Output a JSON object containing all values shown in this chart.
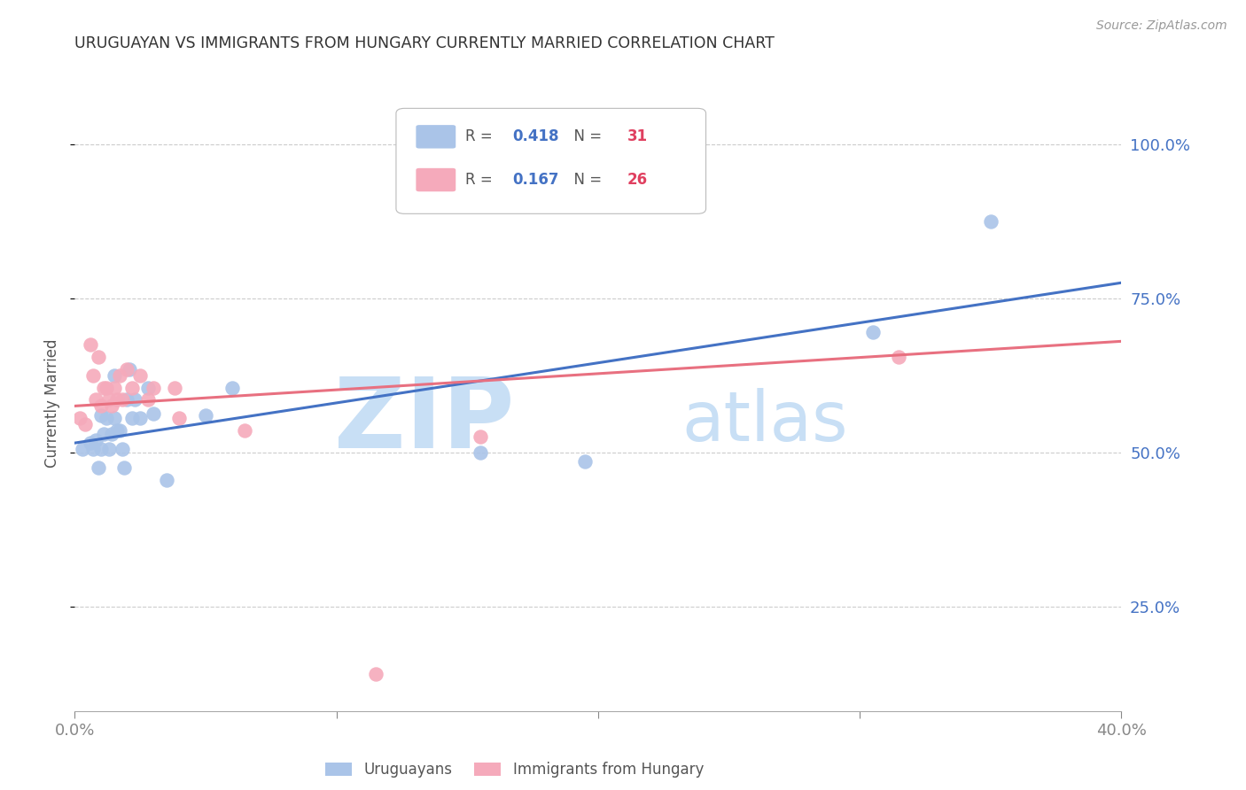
{
  "title": "URUGUAYAN VS IMMIGRANTS FROM HUNGARY CURRENTLY MARRIED CORRELATION CHART",
  "source": "Source: ZipAtlas.com",
  "ylabel": "Currently Married",
  "ytick_labels": [
    "100.0%",
    "75.0%",
    "50.0%",
    "25.0%"
  ],
  "ytick_values": [
    1.0,
    0.75,
    0.5,
    0.25
  ],
  "xmin": 0.0,
  "xmax": 0.4,
  "ymin": 0.08,
  "ymax": 1.08,
  "blue_R": "0.418",
  "blue_N": "31",
  "pink_R": "0.167",
  "pink_N": "26",
  "blue_color": "#aac4e8",
  "pink_color": "#f5aabb",
  "blue_line_color": "#4472c4",
  "pink_line_color": "#e87080",
  "legend_R_color": "#4472c4",
  "legend_N_color": "#e04060",
  "watermark_zip": "ZIP",
  "watermark_atlas": "atlas",
  "watermark_color": "#c8dff5",
  "blue_x": [
    0.003,
    0.006,
    0.007,
    0.008,
    0.009,
    0.01,
    0.01,
    0.011,
    0.012,
    0.013,
    0.014,
    0.015,
    0.015,
    0.016,
    0.017,
    0.018,
    0.019,
    0.02,
    0.021,
    0.022,
    0.023,
    0.025,
    0.028,
    0.03,
    0.035,
    0.05,
    0.06,
    0.155,
    0.195,
    0.305,
    0.35
  ],
  "blue_y": [
    0.505,
    0.515,
    0.505,
    0.52,
    0.475,
    0.56,
    0.505,
    0.53,
    0.555,
    0.505,
    0.53,
    0.625,
    0.555,
    0.535,
    0.535,
    0.505,
    0.475,
    0.585,
    0.635,
    0.555,
    0.585,
    0.555,
    0.605,
    0.562,
    0.455,
    0.56,
    0.605,
    0.5,
    0.485,
    0.695,
    0.875
  ],
  "pink_x": [
    0.002,
    0.004,
    0.006,
    0.007,
    0.008,
    0.009,
    0.01,
    0.011,
    0.012,
    0.013,
    0.014,
    0.015,
    0.016,
    0.017,
    0.018,
    0.02,
    0.022,
    0.025,
    0.028,
    0.03,
    0.038,
    0.04,
    0.065,
    0.155,
    0.315,
    0.115
  ],
  "pink_y": [
    0.555,
    0.545,
    0.675,
    0.625,
    0.585,
    0.655,
    0.575,
    0.605,
    0.605,
    0.585,
    0.575,
    0.605,
    0.585,
    0.625,
    0.585,
    0.635,
    0.605,
    0.625,
    0.585,
    0.605,
    0.605,
    0.555,
    0.535,
    0.525,
    0.655,
    0.14
  ],
  "blue_trendline_x": [
    0.0,
    0.4
  ],
  "blue_trendline_y": [
    0.515,
    0.775
  ],
  "pink_trendline_x": [
    0.0,
    0.4
  ],
  "pink_trendline_y": [
    0.575,
    0.68
  ]
}
